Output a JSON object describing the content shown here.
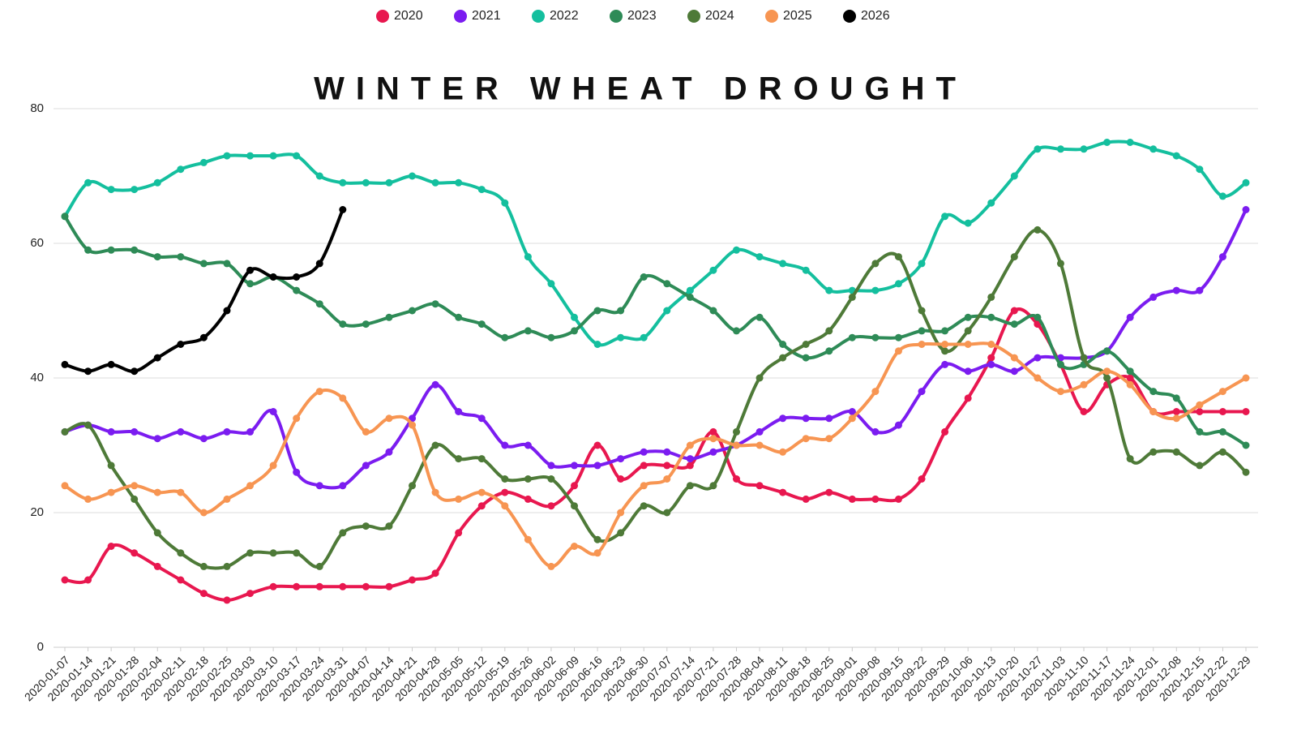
{
  "chart_data": {
    "type": "line",
    "title": "WINTER WHEAT DROUGHT",
    "categories": [
      "2020-01-07",
      "2020-01-14",
      "2020-01-21",
      "2020-01-28",
      "2020-02-04",
      "2020-02-11",
      "2020-02-18",
      "2020-02-25",
      "2020-03-03",
      "2020-03-10",
      "2020-03-17",
      "2020-03-24",
      "2020-03-31",
      "2020-04-07",
      "2020-04-14",
      "2020-04-21",
      "2020-04-28",
      "2020-05-05",
      "2020-05-12",
      "2020-05-19",
      "2020-05-26",
      "2020-06-02",
      "2020-06-09",
      "2020-06-16",
      "2020-06-23",
      "2020-06-30",
      "2020-07-07",
      "2020-07-14",
      "2020-07-21",
      "2020-07-28",
      "2020-08-04",
      "2020-08-11",
      "2020-08-18",
      "2020-08-25",
      "2020-09-01",
      "2020-09-08",
      "2020-09-15",
      "2020-09-22",
      "2020-09-29",
      "2020-10-06",
      "2020-10-13",
      "2020-10-20",
      "2020-10-27",
      "2020-11-03",
      "2020-11-10",
      "2020-11-17",
      "2020-11-24",
      "2020-12-01",
      "2020-12-08",
      "2020-12-15",
      "2020-12-22",
      "2020-12-29"
    ],
    "series": [
      {
        "name": "2020",
        "color": "#e8174f",
        "values": [
          10,
          10,
          15,
          14,
          12,
          10,
          8,
          7,
          8,
          9,
          9,
          9,
          9,
          9,
          9,
          10,
          11,
          17,
          21,
          23,
          22,
          21,
          24,
          30,
          25,
          27,
          27,
          27,
          32,
          25,
          24,
          23,
          22,
          23,
          22,
          22,
          22,
          25,
          32,
          37,
          43,
          50,
          48,
          42,
          35,
          39,
          40,
          35,
          35,
          35,
          35,
          35
        ]
      },
      {
        "name": "2021",
        "color": "#7b1cf0",
        "values": [
          32,
          33,
          32,
          32,
          31,
          32,
          31,
          32,
          32,
          35,
          26,
          24,
          24,
          27,
          29,
          34,
          39,
          35,
          34,
          30,
          30,
          27,
          27,
          27,
          28,
          29,
          29,
          28,
          29,
          30,
          32,
          34,
          34,
          34,
          35,
          32,
          33,
          38,
          42,
          41,
          42,
          41,
          43,
          43,
          43,
          44,
          49,
          52,
          53,
          53,
          58,
          65
        ]
      },
      {
        "name": "2022",
        "color": "#14bf9e",
        "values": [
          64,
          69,
          68,
          68,
          69,
          71,
          72,
          73,
          73,
          73,
          73,
          70,
          69,
          69,
          69,
          70,
          69,
          69,
          68,
          66,
          58,
          54,
          49,
          45,
          46,
          46,
          50,
          53,
          56,
          59,
          58,
          57,
          56,
          53,
          53,
          53,
          54,
          57,
          64,
          63,
          66,
          70,
          74,
          74,
          74,
          75,
          75,
          74,
          73,
          71,
          67,
          69
        ]
      },
      {
        "name": "2023",
        "color": "#2e8b57",
        "values": [
          64,
          59,
          59,
          59,
          58,
          58,
          57,
          57,
          54,
          55,
          53,
          51,
          48,
          48,
          49,
          50,
          51,
          49,
          48,
          46,
          47,
          46,
          47,
          50,
          50,
          55,
          54,
          52,
          50,
          47,
          49,
          45,
          43,
          44,
          46,
          46,
          46,
          47,
          47,
          49,
          49,
          48,
          49,
          42,
          42,
          44,
          41,
          38,
          37,
          32,
          32,
          30
        ]
      },
      {
        "name": "2024",
        "color": "#4e7a38",
        "values": [
          32,
          33,
          27,
          22,
          17,
          14,
          12,
          12,
          14,
          14,
          14,
          12,
          17,
          18,
          18,
          24,
          30,
          28,
          28,
          25,
          25,
          25,
          21,
          16,
          17,
          21,
          20,
          24,
          24,
          32,
          40,
          43,
          45,
          47,
          52,
          57,
          58,
          50,
          44,
          47,
          52,
          58,
          62,
          57,
          43,
          40,
          28,
          29,
          29,
          27,
          29,
          26
        ]
      },
      {
        "name": "2025",
        "color": "#f79552",
        "values": [
          24,
          22,
          23,
          24,
          23,
          23,
          20,
          22,
          24,
          27,
          34,
          38,
          37,
          32,
          34,
          33,
          23,
          22,
          23,
          21,
          16,
          12,
          15,
          14,
          20,
          24,
          25,
          30,
          31,
          30,
          30,
          29,
          31,
          31,
          34,
          38,
          44,
          45,
          45,
          45,
          45,
          43,
          40,
          38,
          39,
          41,
          39,
          35,
          34,
          36,
          38,
          40
        ]
      },
      {
        "name": "2026",
        "color": "#000000",
        "values": [
          42,
          41,
          42,
          41,
          43,
          45,
          46,
          50,
          56,
          55,
          55,
          57,
          65,
          null,
          null,
          null,
          null,
          null,
          null,
          null,
          null,
          null,
          null,
          null,
          null,
          null,
          null,
          null,
          null,
          null,
          null,
          null,
          null,
          null,
          null,
          null,
          null,
          null,
          null,
          null,
          null,
          null,
          null,
          null,
          null,
          null,
          null,
          null,
          null,
          null,
          null,
          null
        ]
      }
    ],
    "ylim": [
      0,
      80
    ],
    "yticks": [
      0,
      20,
      40,
      60,
      80
    ],
    "grid": true,
    "legend": "top"
  }
}
